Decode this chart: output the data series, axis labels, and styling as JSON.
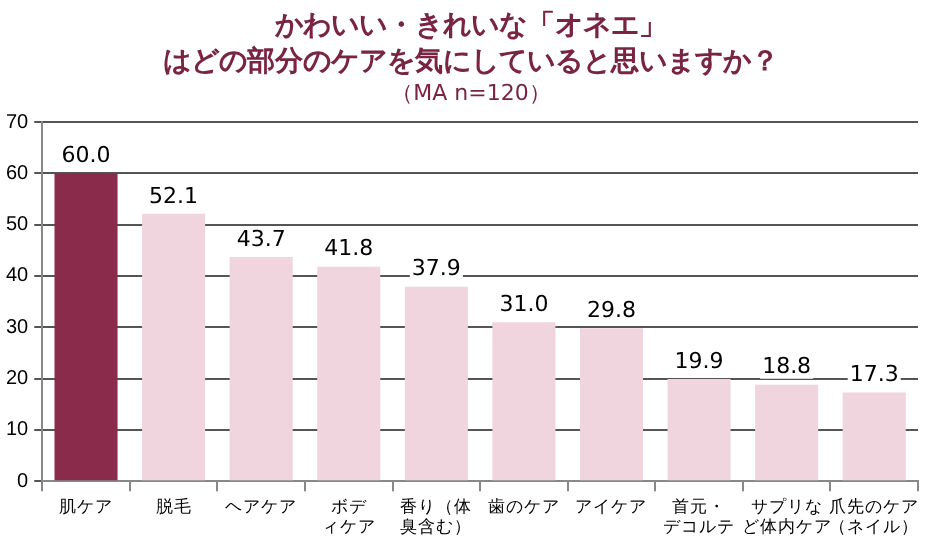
{
  "chart_data": {
    "type": "bar",
    "title": "かわいい・きれいな「オネエ」はどの部分のケアを気にしていると思いますか？",
    "subtitle": "（MA n=120）",
    "categories": [
      "肌ケア",
      "脱毛",
      "ヘアケア",
      "ボディケア",
      "香り（体臭含む）",
      "歯のケア",
      "アイケア",
      "首元・デコルテ",
      "サプリなど体内ケア",
      "爪先のケア（ネイル）"
    ],
    "values": [
      60.0,
      52.1,
      43.7,
      41.8,
      37.9,
      31.0,
      29.8,
      19.9,
      18.8,
      17.3
    ],
    "colors": [
      "#8b2b4c",
      "#f0d4de",
      "#f0d4de",
      "#f0d4de",
      "#f0d4de",
      "#f0d4de",
      "#f0d4de",
      "#f0d4de",
      "#f0d4de",
      "#f0d4de"
    ],
    "value_labels": [
      "60.0",
      "52.1",
      "43.7",
      "41.8",
      "37.9",
      "31.0",
      "29.8",
      "19.9",
      "18.8",
      "17.3"
    ],
    "ylim": [
      0,
      70
    ],
    "yticks": [
      0,
      10,
      20,
      30,
      40,
      50,
      60,
      70
    ],
    "grid": "y"
  }
}
